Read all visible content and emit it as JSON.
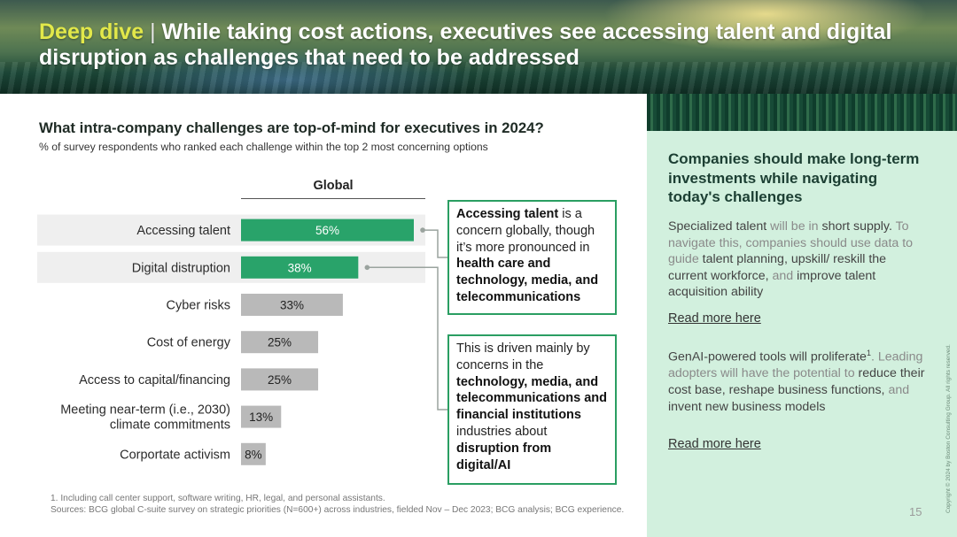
{
  "header": {
    "accent": "Deep dive",
    "separator": "|",
    "title_rest": " While taking cost actions, executives see accessing talent and digital disruption as challenges that need to be addressed"
  },
  "chart_data": {
    "type": "bar",
    "orientation": "horizontal",
    "title": "What intra-company challenges are top-of-mind for executives in 2024?",
    "subtitle": "% of survey respondents who ranked each challenge within the top 2 most concerning options",
    "series_label": "Global",
    "categories": [
      "Accessing talent",
      "Digital distruption",
      "Cyber risks",
      "Cost of energy",
      "Access to capital/financing",
      "Meeting near-term (i.e., 2030) climate commitments",
      "Corportate activism"
    ],
    "category_lines": [
      [
        "Accessing talent"
      ],
      [
        "Digital distruption"
      ],
      [
        "Cyber risks"
      ],
      [
        "Cost of energy"
      ],
      [
        "Access to capital/financing"
      ],
      [
        "Meeting near-term (i.e., 2030)",
        "climate commitments"
      ],
      [
        "Corportate activism"
      ]
    ],
    "values": [
      56,
      38,
      33,
      25,
      25,
      13,
      8
    ],
    "value_labels": [
      "56%",
      "38%",
      "33%",
      "25%",
      "25%",
      "13%",
      "8%"
    ],
    "highlighted": [
      true,
      true,
      false,
      false,
      false,
      false,
      false
    ],
    "xlim": [
      0,
      60
    ],
    "colors": {
      "highlight": "#29a36a",
      "default": "#b9b9b9",
      "row_band": "#efefef",
      "connector": "#9aa39e"
    }
  },
  "callouts": [
    {
      "parts": [
        {
          "text": "Accessing talent",
          "bold": true
        },
        {
          "text": " is a concern globally, though it’s more pronounced in ",
          "bold": false
        },
        {
          "text": "health care and technology, media, and telecommunications",
          "bold": true
        }
      ]
    },
    {
      "parts": [
        {
          "text": "This is driven mainly by concerns in the ",
          "bold": false
        },
        {
          "text": "technology, media, and telecommunications and financial institutions",
          "bold": true
        },
        {
          "text": " industries about ",
          "bold": false
        },
        {
          "text": "disruption from digital/AI",
          "bold": true
        }
      ]
    }
  ],
  "side": {
    "heading": "Companies should make long-term investments while navigating today's challenges",
    "para1": [
      {
        "text": "Specialized talent",
        "hl": true
      },
      {
        "text": " will be in ",
        "hl": false
      },
      {
        "text": "short supply.",
        "hl": true
      },
      {
        "text": " To navigate this, companies should use data to guide ",
        "hl": false
      },
      {
        "text": "talent planning, upskill/ reskill the current workforce,",
        "hl": true
      },
      {
        "text": " and ",
        "hl": false
      },
      {
        "text": "improve talent acquisition ability",
        "hl": true
      }
    ],
    "read_more_1": "Read more here",
    "para2": [
      {
        "text": "GenAI-powered tools will proliferate",
        "hl": true
      },
      {
        "text": "1",
        "hl": true,
        "sup": true
      },
      {
        "text": ". Leading adopters will have the potential to ",
        "hl": false
      },
      {
        "text": "reduce their cost base, reshape business functions,",
        "hl": true
      },
      {
        "text": " and ",
        "hl": false
      },
      {
        "text": "invent new business models",
        "hl": true
      }
    ],
    "read_more_2": "Read more here"
  },
  "footnotes": [
    "1. Including call center support, software writing, HR, legal, and personal assistants.",
    "Sources: BCG global C-suite survey on strategic priorities (N=600+) across industries, fielded Nov – Dec 2023; BCG analysis; BCG experience."
  ],
  "copyright": "Copyright © 2024 by Boston Consulting Group. All rights reserved.",
  "page_number": "15"
}
